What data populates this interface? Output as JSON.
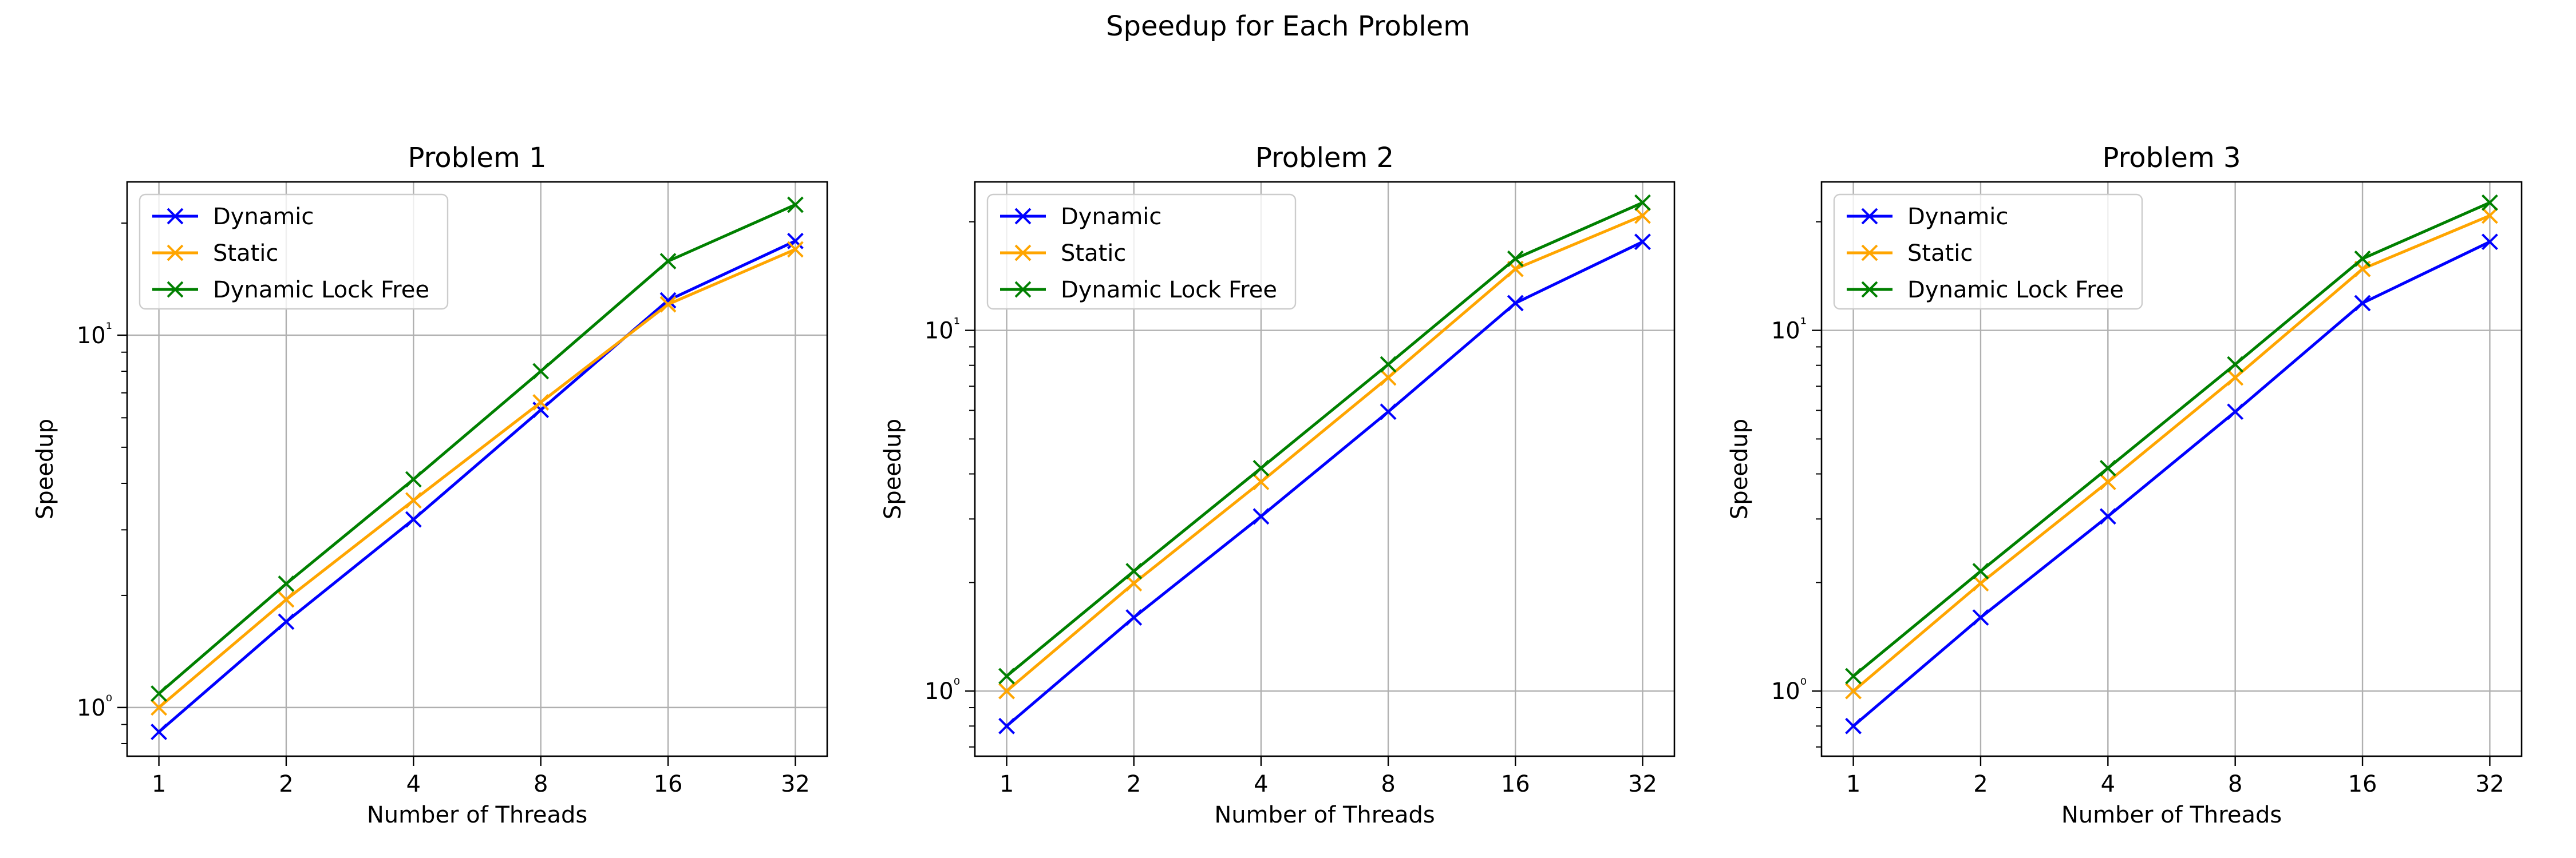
{
  "figure": {
    "suptitle": "Speedup for Each Problem"
  },
  "chart_data": [
    {
      "type": "line",
      "title": "Problem 1",
      "xlabel": "Number of Threads",
      "ylabel": "Speedup",
      "xscale": "log2",
      "yscale": "log10",
      "x": [
        1,
        2,
        4,
        8,
        16,
        32
      ],
      "xticklabels": [
        "1",
        "2",
        "4",
        "8",
        "16",
        "32"
      ],
      "ylim": [
        0.74,
        25.8
      ],
      "yticks": [
        1,
        10
      ],
      "yticklabels": [
        "10⁰",
        "10¹"
      ],
      "grid": true,
      "legend": "top-left",
      "series": [
        {
          "name": "Dynamic",
          "color": "#0000ff",
          "marker": "x",
          "values": [
            0.86,
            1.7,
            3.2,
            6.3,
            12.4,
            17.9
          ]
        },
        {
          "name": "Static",
          "color": "#ffa500",
          "marker": "x",
          "values": [
            1.0,
            1.95,
            3.6,
            6.6,
            12.1,
            17.0
          ]
        },
        {
          "name": "Dynamic Lock Free",
          "color": "#008000",
          "marker": "x",
          "values": [
            1.09,
            2.15,
            4.1,
            8.0,
            15.8,
            22.4
          ]
        }
      ]
    },
    {
      "type": "line",
      "title": "Problem 2",
      "xlabel": "Number of Threads",
      "ylabel": "Speedup",
      "xscale": "log2",
      "yscale": "log10",
      "x": [
        1,
        2,
        4,
        8,
        16,
        32
      ],
      "xticklabels": [
        "1",
        "2",
        "4",
        "8",
        "16",
        "32"
      ],
      "ylim": [
        0.66,
        25.8
      ],
      "yticks": [
        1,
        10
      ],
      "yticklabels": [
        "10⁰",
        "10¹"
      ],
      "grid": true,
      "legend": "top-left",
      "series": [
        {
          "name": "Dynamic",
          "color": "#0000ff",
          "marker": "x",
          "values": [
            0.8,
            1.6,
            3.05,
            5.95,
            11.9,
            17.6
          ]
        },
        {
          "name": "Static",
          "color": "#ffa500",
          "marker": "x",
          "values": [
            1.0,
            1.99,
            3.8,
            7.4,
            14.8,
            20.8
          ]
        },
        {
          "name": "Dynamic Lock Free",
          "color": "#008000",
          "marker": "x",
          "values": [
            1.1,
            2.15,
            4.15,
            8.05,
            15.8,
            22.6
          ]
        }
      ]
    },
    {
      "type": "line",
      "title": "Problem 3",
      "xlabel": "Number of Threads",
      "ylabel": "Speedup",
      "xscale": "log2",
      "yscale": "log10",
      "x": [
        1,
        2,
        4,
        8,
        16,
        32
      ],
      "xticklabels": [
        "1",
        "2",
        "4",
        "8",
        "16",
        "32"
      ],
      "ylim": [
        0.66,
        25.8
      ],
      "yticks": [
        1,
        10
      ],
      "yticklabels": [
        "10⁰",
        "10¹"
      ],
      "grid": true,
      "legend": "top-left",
      "series": [
        {
          "name": "Dynamic",
          "color": "#0000ff",
          "marker": "x",
          "values": [
            0.8,
            1.6,
            3.05,
            5.95,
            11.9,
            17.6
          ]
        },
        {
          "name": "Static",
          "color": "#ffa500",
          "marker": "x",
          "values": [
            1.0,
            1.99,
            3.8,
            7.4,
            14.8,
            20.8
          ]
        },
        {
          "name": "Dynamic Lock Free",
          "color": "#008000",
          "marker": "x",
          "values": [
            1.1,
            2.15,
            4.15,
            8.05,
            15.8,
            22.6
          ]
        }
      ]
    }
  ]
}
